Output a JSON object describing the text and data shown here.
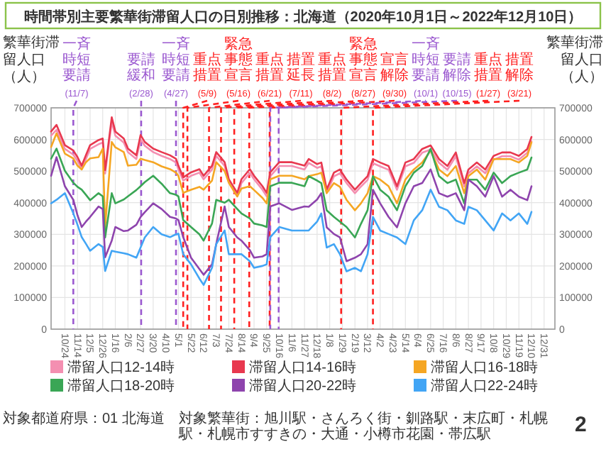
{
  "chart_data": {
    "type": "line",
    "title": "時間帯別主要繁華街滞留人口の日別推移：北海道（2020年10月1日～2022年12月10日）",
    "ylabel": "繁華街滞留人口（人）",
    "y2label": "繁華街滞留人口（人）",
    "x": [
      "2020-10-01",
      "2020-10-10",
      "2020-10-24",
      "2020-11-07",
      "2020-11-14",
      "2020-11-21",
      "2020-11-28",
      "2020-12-05",
      "2020-12-19",
      "2020-12-26",
      "2020-12-30",
      "2021-01-10",
      "2021-01-16",
      "2021-01-30",
      "2021-02-06",
      "2021-02-20",
      "2021-02-27",
      "2021-03-06",
      "2021-03-20",
      "2021-04-03",
      "2021-04-17",
      "2021-04-27",
      "2021-05-01",
      "2021-05-09",
      "2021-05-22",
      "2021-06-05",
      "2021-06-12",
      "2021-06-26",
      "2021-07-03",
      "2021-07-17",
      "2021-07-24",
      "2021-08-07",
      "2021-08-14",
      "2021-08-28",
      "2021-09-04",
      "2021-09-18",
      "2021-09-25",
      "2021-10-01",
      "2021-10-16",
      "2021-11-06",
      "2021-11-27",
      "2021-12-04",
      "2021-12-18",
      "2021-12-25",
      "2022-01-03",
      "2022-01-15",
      "2022-01-25",
      "2022-02-05",
      "2022-02-19",
      "2022-03-01",
      "2022-03-12",
      "2022-03-21",
      "2022-04-02",
      "2022-04-16",
      "2022-04-30",
      "2022-05-14",
      "2022-05-28",
      "2022-06-11",
      "2022-06-25",
      "2022-07-09",
      "2022-07-23",
      "2022-08-06",
      "2022-08-20",
      "2022-08-27",
      "2022-09-10",
      "2022-09-24",
      "2022-10-08",
      "2022-10-22",
      "2022-11-05",
      "2022-11-19",
      "2022-12-03",
      "2022-12-10"
    ],
    "series": [
      {
        "name": "滞留人口12-14時",
        "color": "#f48fb1",
        "values": [
          612000,
          630000,
          570000,
          552000,
          532000,
          506000,
          538000,
          570000,
          585000,
          590000,
          492000,
          655000,
          612000,
          590000,
          560000,
          538000,
          600000,
          580000,
          560000,
          548000,
          538000,
          527000,
          505000,
          470000,
          485000,
          495000,
          474000,
          505000,
          548000,
          516000,
          463000,
          420000,
          462000,
          494000,
          474000,
          441000,
          420000,
          484000,
          516000,
          516000,
          505000,
          526000,
          510000,
          515000,
          432000,
          483000,
          493000,
          462000,
          430000,
          451000,
          472000,
          525000,
          515000,
          504000,
          441000,
          515000,
          526000,
          558000,
          568000,
          526000,
          504000,
          547000,
          451000,
          493000,
          515000,
          493000,
          536000,
          547000,
          547000,
          536000,
          558000,
          594000
        ]
      },
      {
        "name": "滞留人口14-16時",
        "color": "#e8384f",
        "values": [
          625000,
          646000,
          582000,
          565000,
          544000,
          517000,
          550000,
          582000,
          598000,
          603000,
          503000,
          670000,
          625000,
          603000,
          571000,
          550000,
          614000,
          592000,
          571000,
          560000,
          550000,
          539000,
          517000,
          480000,
          496000,
          506000,
          485000,
          517000,
          560000,
          528000,
          474000,
          431000,
          474000,
          506000,
          485000,
          452000,
          431000,
          496000,
          528000,
          528000,
          517000,
          538000,
          522000,
          527000,
          442000,
          495000,
          505000,
          473000,
          441000,
          462000,
          484000,
          538000,
          527000,
          516000,
          452000,
          527000,
          538000,
          570000,
          581000,
          538000,
          516000,
          559000,
          462000,
          505000,
          527000,
          505000,
          548000,
          559000,
          559000,
          548000,
          570000,
          608000
        ]
      },
      {
        "name": "滞留人口16-18時",
        "color": "#f5a623",
        "values": [
          576000,
          619000,
          555000,
          540000,
          517000,
          505000,
          528000,
          540000,
          544000,
          571000,
          323000,
          592000,
          575000,
          560000,
          517000,
          520000,
          539000,
          535000,
          528000,
          515000,
          506000,
          495000,
          485000,
          431000,
          441000,
          450000,
          441000,
          470000,
          528000,
          500000,
          463000,
          420000,
          445000,
          452000,
          440000,
          415000,
          398000,
          474000,
          485000,
          485000,
          474000,
          484000,
          490000,
          495000,
          430000,
          462000,
          450000,
          409000,
          376000,
          398000,
          430000,
          484000,
          473000,
          452000,
          398000,
          473000,
          505000,
          527000,
          565000,
          505000,
          484000,
          516000,
          430000,
          484000,
          505000,
          473000,
          538000,
          538000,
          538000,
          527000,
          548000,
          591000
        ]
      },
      {
        "name": "滞留人口18-20時",
        "color": "#3aa655",
        "values": [
          539000,
          571000,
          501000,
          463000,
          450000,
          441000,
          425000,
          408000,
          430000,
          420000,
          290000,
          430000,
          398000,
          410000,
          420000,
          440000,
          452000,
          465000,
          485000,
          460000,
          430000,
          425000,
          420000,
          345000,
          323000,
          300000,
          280000,
          334000,
          409000,
          400000,
          409000,
          380000,
          366000,
          350000,
          334000,
          328000,
          323000,
          452000,
          463000,
          463000,
          452000,
          484000,
          470000,
          462000,
          376000,
          355000,
          340000,
          323000,
          290000,
          333000,
          376000,
          484000,
          441000,
          419000,
          376000,
          452000,
          495000,
          516000,
          570000,
          484000,
          462000,
          473000,
          398000,
          473000,
          473000,
          441000,
          495000,
          462000,
          484000,
          495000,
          505000,
          543000
        ]
      },
      {
        "name": "滞留人口20-22時",
        "color": "#8e44ad",
        "values": [
          485000,
          544000,
          452000,
          409000,
          360000,
          323000,
          340000,
          355000,
          388000,
          380000,
          227000,
          280000,
          323000,
          310000,
          312000,
          330000,
          355000,
          370000,
          398000,
          380000,
          355000,
          350000,
          345000,
          291000,
          226000,
          190000,
          172000,
          205000,
          269000,
          388000,
          323000,
          290000,
          280000,
          250000,
          226000,
          230000,
          237000,
          388000,
          398000,
          377000,
          388000,
          387000,
          410000,
          430000,
          322000,
          301000,
          290000,
          215000,
          226000,
          237000,
          269000,
          441000,
          398000,
          355000,
          322000,
          398000,
          452000,
          462000,
          505000,
          430000,
          419000,
          430000,
          376000,
          473000,
          452000,
          419000,
          484000,
          419000,
          441000,
          419000,
          408000,
          452000
        ]
      },
      {
        "name": "滞留人口22-24時",
        "color": "#42a5f5",
        "values": [
          398000,
          409000,
          430000,
          366000,
          330000,
          291000,
          270000,
          248000,
          269000,
          260000,
          184000,
          248000,
          245000,
          240000,
          237000,
          226000,
          258000,
          290000,
          323000,
          300000,
          291000,
          300000,
          302000,
          237000,
          205000,
          160000,
          140000,
          194000,
          269000,
          312000,
          237000,
          237000,
          237000,
          215000,
          194000,
          200000,
          205000,
          291000,
          323000,
          312000,
          312000,
          312000,
          340000,
          366000,
          258000,
          269000,
          237000,
          183000,
          194000,
          183000,
          237000,
          355000,
          312000,
          301000,
          290000,
          269000,
          344000,
          376000,
          441000,
          387000,
          376000,
          344000,
          333000,
          387000,
          376000,
          344000,
          312000,
          366000,
          344000,
          366000,
          333000,
          371000
        ]
      }
    ],
    "xlim": [
      "2020-10-01",
      "2023-01-18"
    ],
    "xticks": [
      {
        "value": "2020-10-24",
        "label": "10/24"
      },
      {
        "value": "2020-11-14",
        "label": "11/14"
      },
      {
        "value": "2020-12-05",
        "label": "12/5"
      },
      {
        "value": "2020-12-26",
        "label": "12/26"
      },
      {
        "value": "2021-01-16",
        "label": "1/16"
      },
      {
        "value": "2021-02-06",
        "label": "2/6"
      },
      {
        "value": "2021-02-27",
        "label": "2/27"
      },
      {
        "value": "2021-03-20",
        "label": "3/20"
      },
      {
        "value": "2021-04-10",
        "label": "4/10"
      },
      {
        "value": "2021-05-01",
        "label": "5/1"
      },
      {
        "value": "2021-05-22",
        "label": "5/22"
      },
      {
        "value": "2021-06-12",
        "label": "6/12"
      },
      {
        "value": "2021-07-03",
        "label": "7/3"
      },
      {
        "value": "2021-07-24",
        "label": "7/24"
      },
      {
        "value": "2021-08-14",
        "label": "8/14"
      },
      {
        "value": "2021-09-04",
        "label": "9/4"
      },
      {
        "value": "2021-09-25",
        "label": "9/25"
      },
      {
        "value": "2021-10-16",
        "label": "10/16"
      },
      {
        "value": "2021-11-06",
        "label": "11/6"
      },
      {
        "value": "2021-11-27",
        "label": "11/27"
      },
      {
        "value": "2021-12-18",
        "label": "12/18"
      },
      {
        "value": "2022-01-08",
        "label": "1/8"
      },
      {
        "value": "2022-01-29",
        "label": "1/29"
      },
      {
        "value": "2022-02-19",
        "label": "2/19"
      },
      {
        "value": "2022-03-12",
        "label": "3/12"
      },
      {
        "value": "2022-04-02",
        "label": "4/2"
      },
      {
        "value": "2022-04-23",
        "label": "4/23"
      },
      {
        "value": "2022-05-14",
        "label": "5/14"
      },
      {
        "value": "2022-06-04",
        "label": "6/4"
      },
      {
        "value": "2022-06-25",
        "label": "6/25"
      },
      {
        "value": "2022-07-16",
        "label": "7/16"
      },
      {
        "value": "2022-08-06",
        "label": "8/6"
      },
      {
        "value": "2022-08-27",
        "label": "8/27"
      },
      {
        "value": "2022-09-17",
        "label": "9/17"
      },
      {
        "value": "2022-10-08",
        "label": "10/8"
      },
      {
        "value": "2022-10-29",
        "label": "10/29"
      },
      {
        "value": "2022-11-19",
        "label": "11/19"
      },
      {
        "value": "2022-12-10",
        "label": "12/10"
      },
      {
        "value": "2022-12-31",
        "label": "12/31"
      }
    ],
    "ylim": [
      0,
      700000
    ],
    "yticks": [
      0,
      100000,
      200000,
      300000,
      400000,
      500000,
      600000,
      700000
    ],
    "y2lim": [
      0,
      700000
    ],
    "y2ticks": [
      0,
      100000,
      200000,
      300000,
      400000,
      500000,
      600000,
      700000
    ],
    "ref_lines": [
      {
        "axis": "x",
        "value": "2020-11-07",
        "label": "一斉時短要請(11/7)",
        "color": "#9b59d0",
        "line_style": "dashed"
      },
      {
        "axis": "x",
        "value": "2021-02-28",
        "label": "要請緩和(2/28)",
        "color": "#9b59d0",
        "line_style": "dashed"
      },
      {
        "axis": "x",
        "value": "2021-04-27",
        "label": "一斉時短要請(4/27)",
        "color": "#9b59d0",
        "line_style": "dashed"
      },
      {
        "axis": "x",
        "value": "2021-05-09",
        "label": "重点措置(5/9)",
        "color": "#ff2020",
        "line_style": "dashed"
      },
      {
        "axis": "x",
        "value": "2021-05-16",
        "label": "緊急事態宣言(5/16)",
        "color": "#ff2020",
        "line_style": "dashed"
      },
      {
        "axis": "x",
        "value": "2021-06-21",
        "label": "重点措置(6/21)",
        "color": "#ff2020",
        "line_style": "dashed"
      },
      {
        "axis": "x",
        "value": "2021-07-11",
        "label": "措置延長(7/11)",
        "color": "#ff2020",
        "line_style": "dashed"
      },
      {
        "axis": "x",
        "value": "2021-08-02",
        "label": "重点措置(8/2)",
        "color": "#ff2020",
        "line_style": "dashed"
      },
      {
        "axis": "x",
        "value": "2021-08-27",
        "label": "緊急事態宣言(8/27)",
        "color": "#ff2020",
        "line_style": "dashed"
      },
      {
        "axis": "x",
        "value": "2021-09-30",
        "label": "宣言解除(9/30)",
        "color": "#ff2020",
        "line_style": "dashed"
      },
      {
        "axis": "x",
        "value": "2021-10-01",
        "label": "一斉時短要請(10/1)",
        "color": "#9b59d0",
        "line_style": "dashed"
      },
      {
        "axis": "x",
        "value": "2021-10-15",
        "label": "要請解除(10/15)",
        "color": "#9b59d0",
        "line_style": "dashed"
      },
      {
        "axis": "x",
        "value": "2022-01-27",
        "label": "重点措置(1/27)",
        "color": "#ff2020",
        "line_style": "dashed"
      },
      {
        "axis": "x",
        "value": "2022-03-21",
        "label": "措置解除(3/21)",
        "color": "#ff2020",
        "line_style": "dashed"
      }
    ],
    "annotations": [
      "対象都道府県：01 北海道",
      "対象繁華街：旭川駅・さんろく街・釧路駅・末広町・札幌駅・札幌市すすきの・大通・小樽市花園・帯広駅",
      "2"
    ],
    "grid": true,
    "legend": "bottom",
    "line_style": "solid",
    "marker": "none"
  }
}
